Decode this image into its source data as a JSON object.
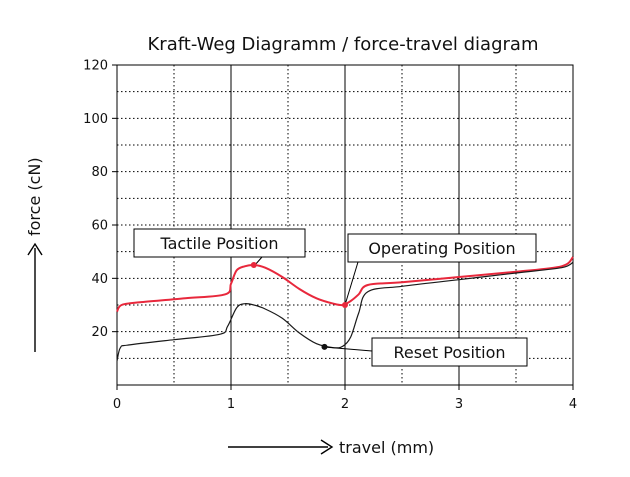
{
  "chart_data": {
    "type": "line",
    "title": "Kraft-Weg Diagramm / force-travel diagram",
    "xlabel": "travel (mm)",
    "ylabel": "force (cN)",
    "xlim": [
      0,
      4
    ],
    "ylim": [
      0,
      120
    ],
    "x_ticks": [
      0,
      1,
      2,
      3,
      4
    ],
    "y_ticks": [
      20,
      40,
      60,
      80,
      100,
      120
    ],
    "grid": "solid at integers, dotted at half-steps",
    "series": [
      {
        "color": "#e8283c",
        "x": [
          0,
          0.04,
          0.2,
          0.6,
          0.95,
          1.0,
          1.05,
          1.12,
          1.2,
          1.3,
          1.45,
          1.6,
          1.75,
          1.9,
          1.98,
          2.05,
          2.12,
          2.2,
          2.5,
          3.0,
          3.5,
          3.9,
          4.0
        ],
        "y": [
          27.5,
          30,
          31,
          32.5,
          34,
          38,
          43,
          44.5,
          45,
          44,
          40.5,
          36,
          32.5,
          30.5,
          30,
          31.5,
          34,
          37.5,
          38.5,
          40.5,
          42.5,
          44.5,
          48
        ]
      },
      {
        "color": "#1a1a1a",
        "x": [
          0,
          0.03,
          0.1,
          0.5,
          0.9,
          0.97,
          1.05,
          1.12,
          1.2,
          1.3,
          1.45,
          1.6,
          1.75,
          1.9,
          1.98,
          2.05,
          2.12,
          2.2,
          2.5,
          3.0,
          3.5,
          3.9,
          4.0
        ],
        "y": [
          9,
          14,
          15,
          17,
          19,
          22,
          29,
          30.5,
          30,
          28.5,
          25,
          19.5,
          15.5,
          14,
          14.5,
          18,
          27,
          35,
          37,
          39.5,
          42,
          44,
          46
        ]
      }
    ],
    "points": [
      {
        "name": "tactile",
        "x": 1.2,
        "y": 45,
        "color": "#e8283c"
      },
      {
        "name": "operating",
        "x": 2.0,
        "y": 30,
        "color": "#e8283c"
      },
      {
        "name": "reset",
        "x": 1.82,
        "y": 14.3,
        "color": "#111111"
      }
    ],
    "annotations": [
      {
        "key": "tactile",
        "text": "Tactile Position"
      },
      {
        "key": "operating",
        "text": "Operating Position"
      },
      {
        "key": "reset",
        "text": "Reset Position"
      }
    ]
  }
}
